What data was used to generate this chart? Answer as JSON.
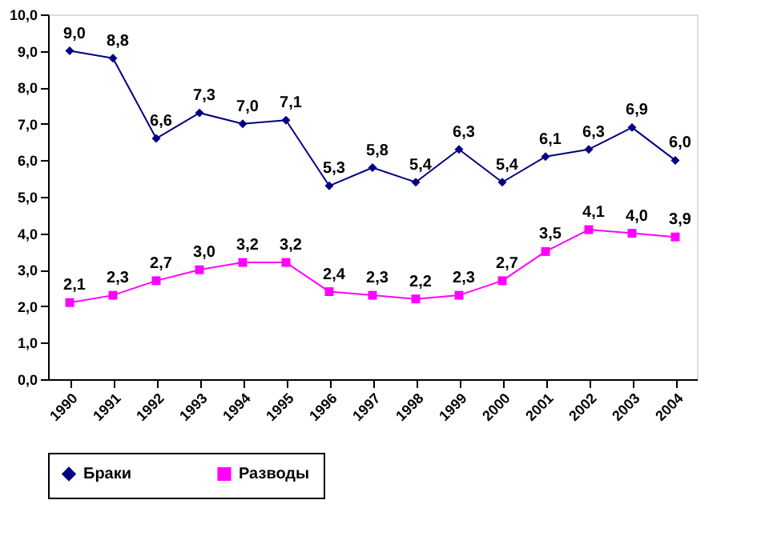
{
  "chart_data": {
    "type": "line",
    "categories": [
      "1990",
      "1991",
      "1992",
      "1993",
      "1994",
      "1995",
      "1996",
      "1997",
      "1998",
      "1999",
      "2000",
      "2001",
      "2002",
      "2003",
      "2004"
    ],
    "series": [
      {
        "name": "Браки",
        "color": "#000080",
        "marker": "diamond",
        "values": [
          9.0,
          8.8,
          6.6,
          7.3,
          7.0,
          7.1,
          5.3,
          5.8,
          5.4,
          6.3,
          5.4,
          6.1,
          6.3,
          6.9,
          6.0
        ],
        "value_labels": [
          "9,0",
          "8,8",
          "6,6",
          "7,3",
          "7,0",
          "7,1",
          "5,3",
          "5,8",
          "5,4",
          "6,3",
          "5,4",
          "6,1",
          "6,3",
          "6,9",
          "6,0"
        ]
      },
      {
        "name": "Разводы",
        "color": "#ff00ff",
        "marker": "square",
        "values": [
          2.1,
          2.3,
          2.7,
          3.0,
          3.2,
          3.2,
          2.4,
          2.3,
          2.2,
          2.3,
          2.7,
          3.5,
          4.1,
          4.0,
          3.9
        ],
        "value_labels": [
          "2,1",
          "2,3",
          "2,7",
          "3,0",
          "3,2",
          "3,2",
          "2,4",
          "2,3",
          "2,2",
          "2,3",
          "2,7",
          "3,5",
          "4,1",
          "4,0",
          "3,9"
        ]
      }
    ],
    "ylim": [
      0,
      10
    ],
    "yticks": [
      {
        "value": 0,
        "label": "0,0"
      },
      {
        "value": 1,
        "label": "1,0"
      },
      {
        "value": 2,
        "label": "2,0"
      },
      {
        "value": 3,
        "label": "3,0"
      },
      {
        "value": 4,
        "label": "4,0"
      },
      {
        "value": 5,
        "label": "5,0"
      },
      {
        "value": 6,
        "label": "6,0"
      },
      {
        "value": 7,
        "label": "7,0"
      },
      {
        "value": 8,
        "label": "8,0"
      },
      {
        "value": 9,
        "label": "9,0"
      },
      {
        "value": 10,
        "label": "10,0"
      }
    ],
    "grid": false,
    "legend": "bottom",
    "line_style": "solid"
  }
}
